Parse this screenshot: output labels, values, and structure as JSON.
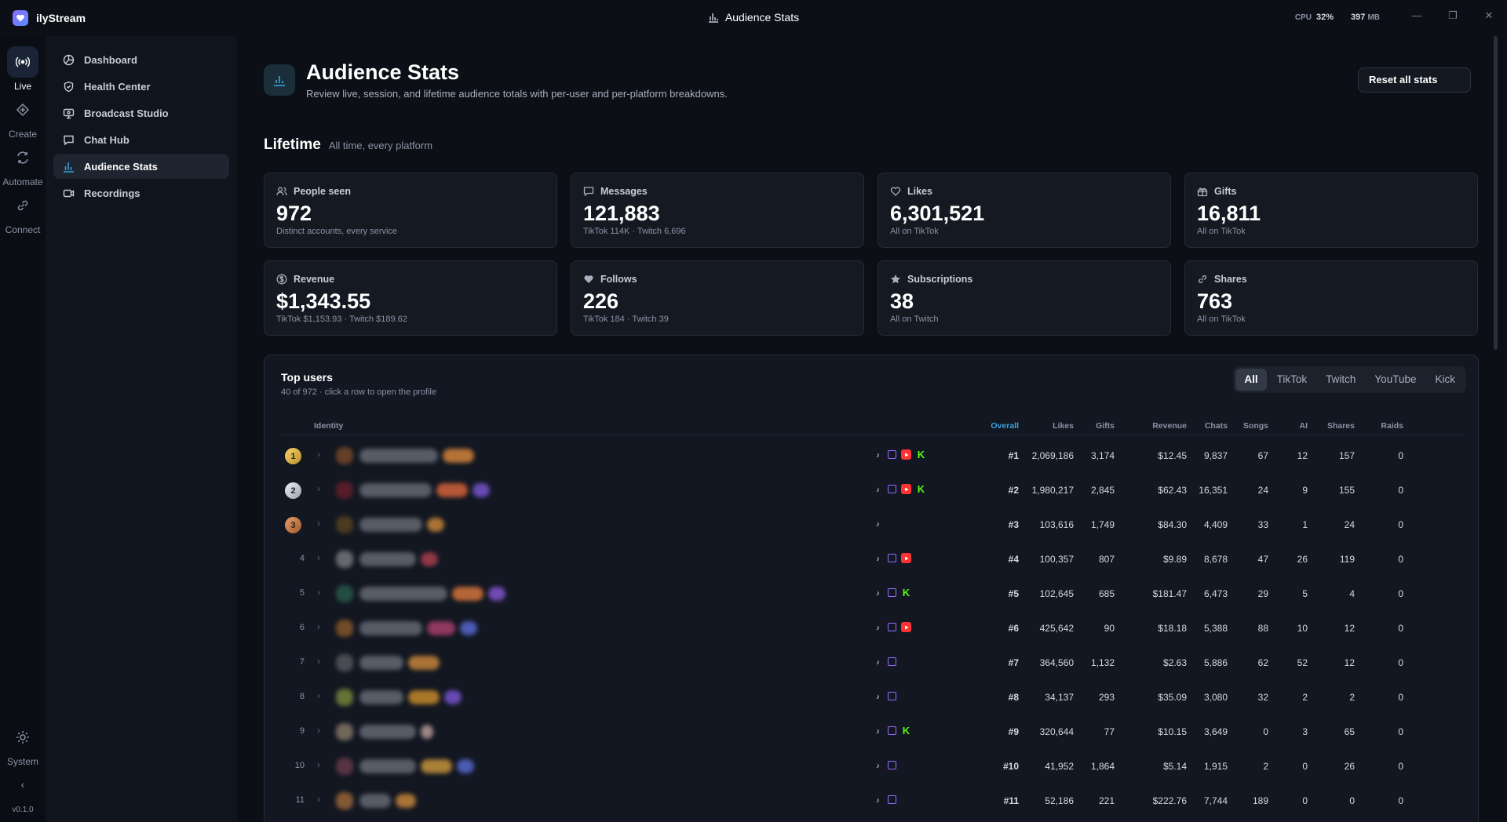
{
  "app": {
    "name": "ilyStream",
    "window_title": "Audience Stats",
    "version": "v0.1.0"
  },
  "system": {
    "cpu_label": "CPU",
    "cpu_value": "32%",
    "mem_value": "397",
    "mem_unit": "MB"
  },
  "rail": [
    {
      "label": "Live",
      "icon": "broadcast-icon"
    },
    {
      "label": "Create",
      "icon": "create-icon"
    },
    {
      "label": "Automate",
      "icon": "automate-icon"
    },
    {
      "label": "Connect",
      "icon": "link-icon"
    },
    {
      "label": "System",
      "icon": "gear-icon"
    }
  ],
  "sidebar": [
    {
      "label": "Dashboard"
    },
    {
      "label": "Health Center"
    },
    {
      "label": "Broadcast Studio"
    },
    {
      "label": "Chat Hub"
    },
    {
      "label": "Audience Stats"
    },
    {
      "label": "Recordings"
    }
  ],
  "header": {
    "title": "Audience Stats",
    "subtitle": "Review live, session, and lifetime audience totals with per-user and per-platform breakdowns.",
    "reset_label": "Reset all stats"
  },
  "lifetime": {
    "title": "Lifetime",
    "subtitle": "All time, every platform",
    "cards": [
      {
        "label": "People seen",
        "value": "972",
        "sub": "Distinct accounts, every service",
        "icon": "people-icon"
      },
      {
        "label": "Messages",
        "value": "121,883",
        "sub": "TikTok 114K · Twitch 6,696",
        "icon": "message-icon"
      },
      {
        "label": "Likes",
        "value": "6,301,521",
        "sub": "All on TikTok",
        "icon": "heart-icon"
      },
      {
        "label": "Gifts",
        "value": "16,811",
        "sub": "All on TikTok",
        "icon": "gift-icon"
      },
      {
        "label": "Revenue",
        "value": "$1,343.55",
        "sub": "TikTok $1,153.93 · Twitch $189.62",
        "icon": "dollar-icon"
      },
      {
        "label": "Follows",
        "value": "226",
        "sub": "TikTok 184 · Twitch 39",
        "icon": "heart-filled-icon"
      },
      {
        "label": "Subscriptions",
        "value": "38",
        "sub": "All on Twitch",
        "icon": "star-icon"
      },
      {
        "label": "Shares",
        "value": "763",
        "sub": "All on TikTok",
        "icon": "link-icon"
      }
    ]
  },
  "top_users": {
    "title": "Top users",
    "subtitle": "40 of 972 · click a row to open the profile",
    "filters": [
      "All",
      "TikTok",
      "Twitch",
      "YouTube",
      "Kick"
    ],
    "active_filter": "All",
    "columns": [
      "Identity",
      "Overall",
      "Likes",
      "Gifts",
      "Revenue",
      "Chats",
      "Songs",
      "AI",
      "Shares",
      "Raids"
    ],
    "rows": [
      {
        "rank": "1",
        "platforms": [
          "tiktok",
          "twitch",
          "youtube",
          "kick"
        ],
        "overall": "#1",
        "likes": "2,069,186",
        "gifts": "3,174",
        "revenue": "$12.45",
        "chats": "9,837",
        "songs": "67",
        "ai": "12",
        "shares": "157",
        "raids": "0"
      },
      {
        "rank": "2",
        "platforms": [
          "tiktok",
          "twitch",
          "youtube",
          "kick"
        ],
        "overall": "#2",
        "likes": "1,980,217",
        "gifts": "2,845",
        "revenue": "$62.43",
        "chats": "16,351",
        "songs": "24",
        "ai": "9",
        "shares": "155",
        "raids": "0"
      },
      {
        "rank": "3",
        "platforms": [
          "tiktok"
        ],
        "overall": "#3",
        "likes": "103,616",
        "gifts": "1,749",
        "revenue": "$84.30",
        "chats": "4,409",
        "songs": "33",
        "ai": "1",
        "shares": "24",
        "raids": "0"
      },
      {
        "rank": "4",
        "platforms": [
          "tiktok",
          "twitch",
          "youtube"
        ],
        "overall": "#4",
        "likes": "100,357",
        "gifts": "807",
        "revenue": "$9.89",
        "chats": "8,678",
        "songs": "47",
        "ai": "26",
        "shares": "119",
        "raids": "0"
      },
      {
        "rank": "5",
        "platforms": [
          "tiktok",
          "twitch",
          "kick"
        ],
        "overall": "#5",
        "likes": "102,645",
        "gifts": "685",
        "revenue": "$181.47",
        "chats": "6,473",
        "songs": "29",
        "ai": "5",
        "shares": "4",
        "raids": "0"
      },
      {
        "rank": "6",
        "platforms": [
          "tiktok",
          "twitch",
          "youtube"
        ],
        "overall": "#6",
        "likes": "425,642",
        "gifts": "90",
        "revenue": "$18.18",
        "chats": "5,388",
        "songs": "88",
        "ai": "10",
        "shares": "12",
        "raids": "0"
      },
      {
        "rank": "7",
        "platforms": [
          "tiktok",
          "twitch"
        ],
        "overall": "#7",
        "likes": "364,560",
        "gifts": "1,132",
        "revenue": "$2.63",
        "chats": "5,886",
        "songs": "62",
        "ai": "52",
        "shares": "12",
        "raids": "0"
      },
      {
        "rank": "8",
        "platforms": [
          "tiktok",
          "twitch"
        ],
        "overall": "#8",
        "likes": "34,137",
        "gifts": "293",
        "revenue": "$35.09",
        "chats": "3,080",
        "songs": "32",
        "ai": "2",
        "shares": "2",
        "raids": "0"
      },
      {
        "rank": "9",
        "platforms": [
          "tiktok",
          "twitch",
          "kick"
        ],
        "overall": "#9",
        "likes": "320,644",
        "gifts": "77",
        "revenue": "$10.15",
        "chats": "3,649",
        "songs": "0",
        "ai": "3",
        "shares": "65",
        "raids": "0"
      },
      {
        "rank": "10",
        "platforms": [
          "tiktok",
          "twitch"
        ],
        "overall": "#10",
        "likes": "41,952",
        "gifts": "1,864",
        "revenue": "$5.14",
        "chats": "1,915",
        "songs": "2",
        "ai": "0",
        "shares": "26",
        "raids": "0"
      },
      {
        "rank": "11",
        "platforms": [
          "tiktok",
          "twitch"
        ],
        "overall": "#11",
        "likes": "52,186",
        "gifts": "221",
        "revenue": "$222.76",
        "chats": "7,744",
        "songs": "189",
        "ai": "0",
        "shares": "0",
        "raids": "0"
      }
    ]
  }
}
